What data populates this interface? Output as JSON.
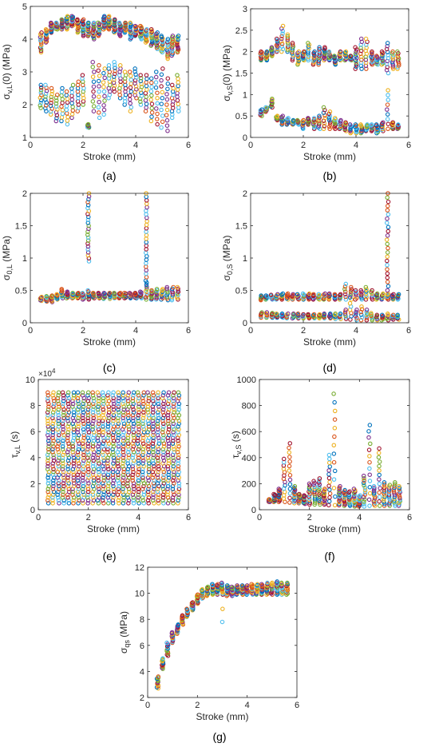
{
  "palette": [
    "#0072BD",
    "#D95319",
    "#EDB120",
    "#7E2F8E",
    "#77AC30",
    "#4DBEEE",
    "#A2142F"
  ],
  "chart_data": [
    {
      "type": "scatter",
      "panel_label": "(a)",
      "xlabel": "Stroke (mm)",
      "ylabel_base": "σ",
      "ylabel_sub": "v,L",
      "ylabel_rest": "(0) (MPa)",
      "xlim": [
        0,
        6
      ],
      "ylim": [
        1,
        5
      ],
      "xticks": [
        0,
        2,
        4,
        6
      ],
      "yticks": [
        1,
        2,
        3,
        4,
        5
      ],
      "exponent_label": "",
      "stroke_positions": [
        0.4,
        0.6,
        0.8,
        1.0,
        1.2,
        1.4,
        1.6,
        1.8,
        2.0,
        2.2,
        2.4,
        2.6,
        2.8,
        3.0,
        3.2,
        3.4,
        3.6,
        3.8,
        4.0,
        4.2,
        4.4,
        4.6,
        4.8,
        5.0,
        5.2,
        5.4,
        5.6
      ],
      "clusters": [
        {
          "x_from": 0.4,
          "x_to": 5.6,
          "y_low": [
            3.6,
            3.9,
            4.2,
            4.3,
            4.3,
            4.3,
            4.4,
            4.2,
            4.1,
            4.1,
            4.0,
            4.1,
            4.3,
            4.3,
            4.2,
            4.1,
            4.2,
            4.0,
            4.1,
            4.0,
            3.9,
            3.8,
            3.7,
            3.6,
            3.4,
            3.5,
            3.6
          ],
          "y_high": [
            4.2,
            4.3,
            4.5,
            4.5,
            4.6,
            4.7,
            4.7,
            4.6,
            4.6,
            4.5,
            4.5,
            4.5,
            4.7,
            4.7,
            4.6,
            4.5,
            4.5,
            4.5,
            4.4,
            4.4,
            4.3,
            4.3,
            4.2,
            4.1,
            4.0,
            4.1,
            4.1
          ],
          "count": 14
        },
        {
          "x_from": 0.4,
          "x_to": 2.2,
          "y_low": [
            1.9,
            1.8,
            1.7,
            1.5,
            1.5,
            1.4,
            1.6,
            1.8,
            2.0,
            1.3
          ],
          "y_high": [
            2.6,
            2.6,
            2.5,
            2.3,
            2.5,
            2.4,
            2.6,
            2.7,
            2.9,
            1.4
          ],
          "count": 10
        },
        {
          "x_from": 2.4,
          "x_to": 5.6,
          "y_low": [
            1.8,
            1.6,
            1.7,
            2.2,
            2.4,
            2.2,
            2.0,
            1.8,
            2.2,
            2.0,
            1.8,
            1.5,
            1.4,
            1.3,
            1.2,
            1.6,
            1.8
          ],
          "y_high": [
            3.3,
            3.2,
            3.1,
            3.2,
            3.3,
            3.2,
            3.0,
            3.0,
            3.1,
            2.9,
            2.9,
            2.8,
            3.0,
            3.1,
            2.8,
            2.6,
            2.9
          ],
          "count": 11
        }
      ]
    },
    {
      "type": "scatter",
      "panel_label": "(b)",
      "xlabel": "Stroke (mm)",
      "ylabel_base": "σ",
      "ylabel_sub": "v,S",
      "ylabel_rest": "(0) (MPa)",
      "xlim": [
        0,
        6
      ],
      "ylim": [
        0,
        3
      ],
      "xticks": [
        0,
        2,
        4,
        6
      ],
      "yticks": [
        0,
        0.5,
        1,
        1.5,
        2,
        2.5,
        3
      ],
      "exponent_label": "",
      "stroke_positions": [
        0.4,
        0.6,
        0.8,
        1.0,
        1.2,
        1.4,
        1.6,
        1.8,
        2.0,
        2.2,
        2.4,
        2.6,
        2.8,
        3.0,
        3.2,
        3.4,
        3.6,
        3.8,
        4.0,
        4.2,
        4.4,
        4.6,
        4.8,
        5.0,
        5.2,
        5.4,
        5.6
      ],
      "clusters": [
        {
          "x_from": 0.4,
          "x_to": 5.6,
          "y_low": [
            1.8,
            1.8,
            1.9,
            2.0,
            2.0,
            2.0,
            1.8,
            1.7,
            1.8,
            1.8,
            1.7,
            1.7,
            1.8,
            1.8,
            1.7,
            1.8,
            1.8,
            1.8,
            1.6,
            1.6,
            1.6,
            1.7,
            1.7,
            1.7,
            1.5,
            1.6,
            1.6
          ],
          "y_high": [
            2.0,
            2.0,
            2.1,
            2.3,
            2.6,
            2.4,
            2.2,
            2.0,
            2.0,
            2.2,
            2.0,
            2.1,
            2.1,
            2.0,
            1.9,
            2.0,
            2.0,
            1.9,
            2.1,
            2.3,
            2.3,
            2.0,
            1.9,
            2.0,
            2.2,
            2.0,
            2.0
          ],
          "count": 11
        },
        {
          "x_from": 0.4,
          "x_to": 5.6,
          "y_low": [
            0.5,
            0.6,
            0.7,
            0.4,
            0.3,
            0.3,
            0.3,
            0.3,
            0.2,
            0.3,
            0.2,
            0.2,
            0.2,
            0.2,
            0.2,
            0.2,
            0.15,
            0.1,
            0.1,
            0.1,
            0.15,
            0.15,
            0.1,
            0.15,
            0.2,
            0.2,
            0.2
          ],
          "y_high": [
            0.65,
            0.7,
            0.9,
            0.5,
            0.5,
            0.45,
            0.4,
            0.4,
            0.4,
            0.45,
            0.45,
            0.5,
            0.7,
            0.6,
            0.45,
            0.4,
            0.35,
            0.3,
            0.3,
            0.3,
            0.3,
            0.3,
            0.3,
            0.35,
            1.1,
            0.35,
            0.3
          ],
          "count": 9
        }
      ]
    },
    {
      "type": "scatter",
      "panel_label": "(c)",
      "xlabel": "Stroke (mm)",
      "ylabel_base": "σ",
      "ylabel_sub": "0,L",
      "ylabel_rest": " (MPa)",
      "xlim": [
        0,
        6
      ],
      "ylim": [
        0,
        2
      ],
      "xticks": [
        0,
        2,
        4,
        6
      ],
      "yticks": [
        0,
        0.5,
        1,
        1.5,
        2
      ],
      "exponent_label": "",
      "stroke_positions": [
        0.4,
        0.6,
        0.8,
        1.0,
        1.2,
        1.4,
        1.6,
        1.8,
        2.0,
        2.2,
        2.4,
        2.6,
        2.8,
        3.0,
        3.2,
        3.4,
        3.6,
        3.8,
        4.0,
        4.2,
        4.4,
        4.6,
        4.8,
        5.0,
        5.2,
        5.4,
        5.6
      ],
      "clusters": [
        {
          "x_from": 0.4,
          "x_to": 5.6,
          "y_low": [
            0.34,
            0.33,
            0.32,
            0.36,
            0.38,
            0.38,
            0.38,
            0.38,
            0.36,
            0.36,
            0.38,
            0.38,
            0.37,
            0.37,
            0.38,
            0.38,
            0.38,
            0.38,
            0.38,
            0.38,
            0.36,
            0.36,
            0.36,
            0.36,
            0.35,
            0.35,
            0.36
          ],
          "y_high": [
            0.4,
            0.41,
            0.42,
            0.44,
            0.52,
            0.48,
            0.46,
            0.46,
            0.46,
            0.5,
            0.46,
            0.46,
            0.46,
            0.46,
            0.46,
            0.46,
            0.46,
            0.46,
            0.46,
            0.48,
            0.62,
            0.5,
            0.52,
            0.52,
            0.55,
            0.55,
            0.55
          ],
          "count": 9
        },
        {
          "x_from": 2.2,
          "x_to": 2.2,
          "y_low": [
            0.95
          ],
          "y_high": [
            2.0
          ],
          "count": 24
        },
        {
          "x_from": 4.4,
          "x_to": 4.4,
          "y_low": [
            0.65
          ],
          "y_high": [
            2.0
          ],
          "count": 26
        }
      ]
    },
    {
      "type": "scatter",
      "panel_label": "(d)",
      "xlabel": "Stroke (mm)",
      "ylabel_base": "σ",
      "ylabel_sub": "0,S",
      "ylabel_rest": " (MPa)",
      "xlim": [
        0,
        6
      ],
      "ylim": [
        0,
        2
      ],
      "xticks": [
        0,
        2,
        4,
        6
      ],
      "yticks": [
        0,
        0.5,
        1,
        1.5,
        2
      ],
      "exponent_label": "",
      "stroke_positions": [
        0.4,
        0.6,
        0.8,
        1.0,
        1.2,
        1.4,
        1.6,
        1.8,
        2.0,
        2.2,
        2.4,
        2.6,
        2.8,
        3.0,
        3.2,
        3.4,
        3.6,
        3.8,
        4.0,
        4.2,
        4.4,
        4.6,
        4.8,
        5.0,
        5.2,
        5.4,
        5.6
      ],
      "clusters": [
        {
          "x_from": 0.4,
          "x_to": 5.6,
          "y_low": [
            0.35,
            0.36,
            0.36,
            0.36,
            0.36,
            0.36,
            0.36,
            0.36,
            0.36,
            0.36,
            0.36,
            0.36,
            0.36,
            0.36,
            0.36,
            0.36,
            0.36,
            0.36,
            0.36,
            0.36,
            0.36,
            0.36,
            0.36,
            0.36,
            0.36,
            0.36,
            0.36
          ],
          "y_high": [
            0.42,
            0.42,
            0.43,
            0.44,
            0.45,
            0.45,
            0.44,
            0.44,
            0.45,
            0.45,
            0.44,
            0.44,
            0.45,
            0.45,
            0.44,
            0.44,
            0.6,
            0.55,
            0.5,
            0.5,
            0.55,
            0.5,
            0.45,
            0.45,
            0.45,
            0.44,
            0.44
          ],
          "count": 7
        },
        {
          "x_from": 0.4,
          "x_to": 5.6,
          "y_low": [
            0.08,
            0.08,
            0.08,
            0.08,
            0.08,
            0.07,
            0.07,
            0.07,
            0.07,
            0.07,
            0.07,
            0.07,
            0.07,
            0.07,
            0.06,
            0.06,
            0.06,
            0.05,
            0.04,
            0.04,
            0.04,
            0.04,
            0.04,
            0.04,
            0.04,
            0.05,
            0.05
          ],
          "y_high": [
            0.16,
            0.16,
            0.15,
            0.14,
            0.14,
            0.14,
            0.14,
            0.14,
            0.13,
            0.13,
            0.13,
            0.13,
            0.14,
            0.14,
            0.14,
            0.14,
            0.2,
            0.3,
            0.2,
            0.25,
            0.2,
            0.15,
            0.12,
            0.12,
            0.14,
            0.12,
            0.12
          ],
          "count": 6
        },
        {
          "x_from": 5.2,
          "x_to": 5.2,
          "y_low": [
            0.5
          ],
          "y_high": [
            2.0
          ],
          "count": 24
        }
      ]
    },
    {
      "type": "scatter",
      "panel_label": "(e)",
      "xlabel": "Stroke (mm)",
      "ylabel_base": "τ",
      "ylabel_sub": "v,L",
      "ylabel_rest": " (s)",
      "xlim": [
        0,
        6
      ],
      "ylim": [
        0,
        10
      ],
      "xticks": [
        0,
        2,
        4,
        6
      ],
      "yticks": [
        0,
        2,
        4,
        6,
        8,
        10
      ],
      "exponent_label": "×10^4",
      "stroke_positions": [
        0.4,
        0.6,
        0.8,
        1.0,
        1.2,
        1.4,
        1.6,
        1.8,
        2.0,
        2.2,
        2.4,
        2.6,
        2.8,
        3.0,
        3.2,
        3.4,
        3.6,
        3.8,
        4.0,
        4.2,
        4.4,
        4.6,
        4.8,
        5.0,
        5.2,
        5.4,
        5.6
      ],
      "clusters": [
        {
          "x_from": 0.4,
          "x_to": 5.6,
          "y_low": [
            0.5,
            0.5,
            0.5,
            0.5,
            0.5,
            0.5,
            0.5,
            0.5,
            0.5,
            0.5,
            0.5,
            0.5,
            0.5,
            0.5,
            0.5,
            0.5,
            0.5,
            0.5,
            0.5,
            0.5,
            0.5,
            0.5,
            0.5,
            0.5,
            0.5,
            0.5,
            0.5
          ],
          "y_high": [
            9.0,
            9.0,
            9.0,
            9.0,
            9.0,
            9.0,
            9.0,
            9.0,
            9.0,
            9.0,
            9.0,
            9.0,
            9.0,
            9.0,
            9.0,
            9.0,
            9.0,
            9.0,
            9.0,
            9.0,
            9.0,
            9.0,
            9.0,
            9.0,
            9.0,
            9.0,
            9.0
          ],
          "count": 40
        }
      ]
    },
    {
      "type": "scatter",
      "panel_label": "(f)",
      "xlabel": "Stroke (mm)",
      "ylabel_base": "τ",
      "ylabel_sub": "v,S",
      "ylabel_rest": " (s)",
      "xlim": [
        0,
        6
      ],
      "ylim": [
        0,
        1000
      ],
      "xticks": [
        0,
        2,
        4,
        6
      ],
      "yticks": [
        0,
        200,
        400,
        600,
        800,
        1000
      ],
      "exponent_label": "",
      "stroke_positions": [
        0.4,
        0.6,
        0.8,
        1.0,
        1.2,
        1.4,
        1.6,
        1.8,
        2.0,
        2.2,
        2.4,
        2.6,
        2.8,
        3.0,
        3.2,
        3.4,
        3.6,
        3.8,
        4.0,
        4.2,
        4.4,
        4.6,
        4.8,
        5.0,
        5.2,
        5.4,
        5.6
      ],
      "clusters": [
        {
          "x_from": 0.4,
          "x_to": 5.6,
          "y_low": [
            60,
            60,
            60,
            60,
            55,
            50,
            50,
            45,
            40,
            40,
            40,
            40,
            35,
            35,
            35,
            30,
            30,
            25,
            25,
            25,
            30,
            30,
            30,
            30,
            30,
            30,
            30
          ],
          "y_high": [
            80,
            120,
            160,
            390,
            510,
            180,
            120,
            110,
            200,
            220,
            240,
            160,
            420,
            890,
            180,
            150,
            140,
            160,
            110,
            260,
            650,
            180,
            470,
            210,
            190,
            210,
            180
          ],
          "count": 14
        }
      ]
    },
    {
      "type": "scatter",
      "panel_label": "(g)",
      "xlabel": "Stroke (mm)",
      "ylabel_base": "σ",
      "ylabel_sub": "qs",
      "ylabel_rest": " (MPa)",
      "xlim": [
        0,
        6
      ],
      "ylim": [
        2,
        12
      ],
      "xticks": [
        0,
        2,
        4,
        6
      ],
      "yticks": [
        2,
        4,
        6,
        8,
        10,
        12
      ],
      "exponent_label": "",
      "stroke_positions": [
        0.4,
        0.6,
        0.8,
        1.0,
        1.2,
        1.4,
        1.6,
        1.8,
        2.0,
        2.2,
        2.4,
        2.6,
        2.8,
        3.0,
        3.2,
        3.4,
        3.6,
        3.8,
        4.0,
        4.2,
        4.4,
        4.6,
        4.8,
        5.0,
        5.2,
        5.4,
        5.6
      ],
      "clusters": [
        {
          "x_from": 0.4,
          "x_to": 5.6,
          "y_low": [
            2.7,
            4.2,
            5.2,
            6.2,
            6.9,
            7.6,
            8.2,
            8.7,
            9.2,
            9.6,
            9.8,
            9.9,
            9.9,
            9.9,
            9.8,
            9.8,
            9.9,
            9.9,
            9.9,
            9.9,
            9.9,
            9.9,
            9.9,
            9.9,
            9.9,
            9.9,
            9.9
          ],
          "y_high": [
            3.6,
            5.0,
            6.2,
            7.0,
            7.6,
            8.3,
            8.8,
            9.3,
            9.9,
            10.3,
            10.5,
            10.7,
            10.7,
            10.8,
            10.6,
            10.5,
            10.6,
            10.6,
            10.6,
            10.7,
            10.7,
            10.7,
            10.8,
            10.8,
            10.9,
            10.8,
            10.8
          ],
          "count": 12
        },
        {
          "x_from": 3.0,
          "x_to": 3.0,
          "y_low": [
            7.8
          ],
          "y_high": [
            8.8
          ],
          "count": 2
        }
      ]
    }
  ]
}
